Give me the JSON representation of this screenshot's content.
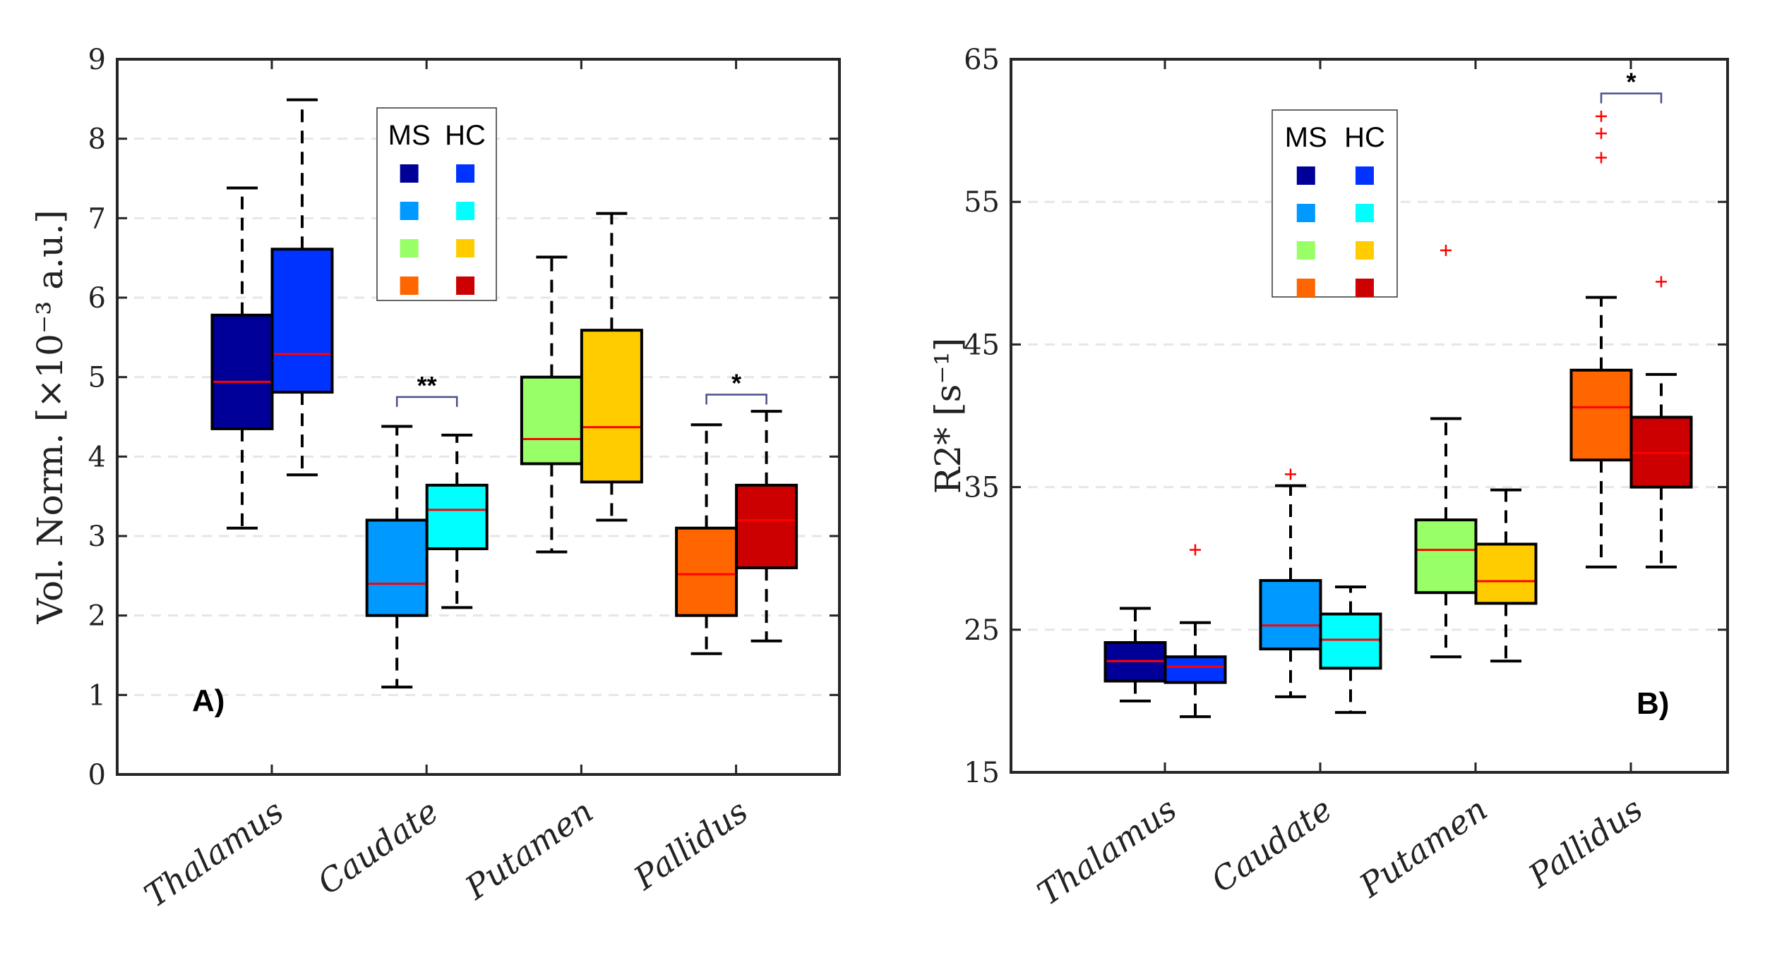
{
  "chart_data": [
    {
      "type": "box",
      "panel_label": "A)",
      "ylabel": "Vol. Norm. [×10⁻³ a.u.]",
      "ylim": [
        0,
        9
      ],
      "yticks": [
        "0",
        "1",
        "2",
        "3",
        "4",
        "5",
        "6",
        "7",
        "8",
        "9"
      ],
      "grid": "horizontal dashed",
      "categories": [
        "Thalamus",
        "Caudate",
        "Putamen",
        "Pallidus"
      ],
      "legend": {
        "placement": "top-center",
        "headers": [
          "MS",
          "HC"
        ]
      },
      "series": [
        {
          "name": "MS",
          "colors": [
            "#000099",
            "#0099ff",
            "#99ff66",
            "#ff6600"
          ],
          "boxes": [
            {
              "whisker_low": 3.1,
              "q1": 4.35,
              "median": 4.94,
              "q3": 5.78,
              "whisker_high": 7.38,
              "outliers": []
            },
            {
              "whisker_low": 1.1,
              "q1": 2.0,
              "median": 2.4,
              "q3": 3.2,
              "whisker_high": 4.38,
              "outliers": []
            },
            {
              "whisker_low": 2.8,
              "q1": 3.91,
              "median": 4.22,
              "q3": 5.0,
              "whisker_high": 6.51,
              "outliers": []
            },
            {
              "whisker_low": 1.52,
              "q1": 2.0,
              "median": 2.52,
              "q3": 3.1,
              "whisker_high": 4.4,
              "outliers": []
            }
          ]
        },
        {
          "name": "HC",
          "colors": [
            "#0033ff",
            "#00ffff",
            "#ffcc00",
            "#cc0000"
          ],
          "boxes": [
            {
              "whisker_low": 3.77,
              "q1": 4.81,
              "median": 5.29,
              "q3": 6.61,
              "whisker_high": 8.49,
              "outliers": []
            },
            {
              "whisker_low": 2.1,
              "q1": 2.84,
              "median": 3.33,
              "q3": 3.64,
              "whisker_high": 4.27,
              "outliers": []
            },
            {
              "whisker_low": 3.2,
              "q1": 3.68,
              "median": 4.37,
              "q3": 5.59,
              "whisker_high": 7.06,
              "outliers": []
            },
            {
              "whisker_low": 1.68,
              "q1": 2.6,
              "median": 3.2,
              "q3": 3.64,
              "whisker_high": 4.57,
              "outliers": []
            }
          ]
        }
      ],
      "significance": [
        {
          "category": "Caudate",
          "label": "**",
          "level": 4.75
        },
        {
          "category": "Pallidus",
          "label": "*",
          "level": 4.78
        }
      ]
    },
    {
      "type": "box",
      "panel_label": "B)",
      "ylabel": "R2* [s⁻¹]",
      "ylim": [
        15,
        65
      ],
      "yticks": [
        "15",
        "25",
        "35",
        "45",
        "55",
        "65"
      ],
      "grid": "horizontal dashed",
      "categories": [
        "Thalamus",
        "Caudate",
        "Putamen",
        "Pallidus"
      ],
      "legend": {
        "placement": "top-center",
        "headers": [
          "MS",
          "HC"
        ]
      },
      "series": [
        {
          "name": "MS",
          "colors": [
            "#000099",
            "#0099ff",
            "#99ff66",
            "#ff6600"
          ],
          "boxes": [
            {
              "whisker_low": 20.0,
              "q1": 21.4,
              "median": 22.8,
              "q3": 24.1,
              "whisker_high": 26.5,
              "outliers": []
            },
            {
              "whisker_low": 20.3,
              "q1": 23.65,
              "median": 25.3,
              "q3": 28.45,
              "whisker_high": 35.1,
              "outliers": [
                35.9
              ]
            },
            {
              "whisker_low": 23.1,
              "q1": 27.6,
              "median": 30.6,
              "q3": 32.7,
              "whisker_high": 39.8,
              "outliers": [
                51.6
              ]
            },
            {
              "whisker_low": 29.4,
              "q1": 36.9,
              "median": 40.6,
              "q3": 43.2,
              "whisker_high": 48.3,
              "outliers": [
                58.1,
                59.8,
                61.0
              ]
            }
          ]
        },
        {
          "name": "HC",
          "colors": [
            "#0033ff",
            "#00ffff",
            "#ffcc00",
            "#cc0000"
          ],
          "boxes": [
            {
              "whisker_low": 18.9,
              "q1": 21.3,
              "median": 22.4,
              "q3": 23.1,
              "whisker_high": 25.5,
              "outliers": [
                30.6
              ]
            },
            {
              "whisker_low": 19.2,
              "q1": 22.3,
              "median": 24.3,
              "q3": 26.1,
              "whisker_high": 28.0,
              "outliers": []
            },
            {
              "whisker_low": 22.8,
              "q1": 26.85,
              "median": 28.4,
              "q3": 31.0,
              "whisker_high": 34.8,
              "outliers": []
            },
            {
              "whisker_low": 29.4,
              "q1": 35.0,
              "median": 37.4,
              "q3": 39.9,
              "whisker_high": 42.9,
              "outliers": [
                49.4
              ]
            }
          ]
        }
      ],
      "significance": [
        {
          "category": "Pallidus",
          "label": "*",
          "level": 62.6
        }
      ]
    }
  ]
}
